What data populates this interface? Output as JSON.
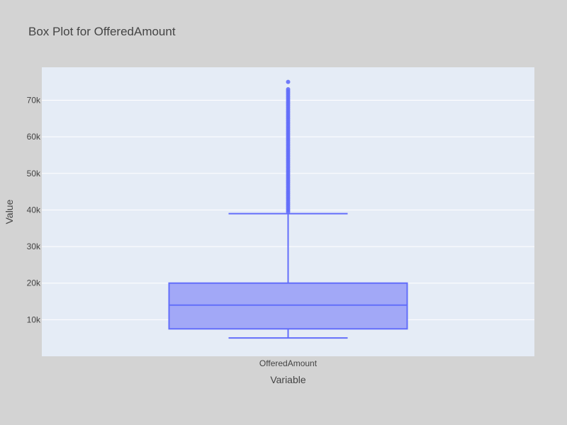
{
  "chart_data": {
    "type": "box",
    "title": "Box Plot for OfferedAmount",
    "xlabel": "Variable",
    "ylabel": "Value",
    "categories": [
      "OfferedAmount"
    ],
    "ylim": [
      0,
      79000
    ],
    "y_ticks": [
      10000,
      20000,
      30000,
      40000,
      50000,
      60000,
      70000
    ],
    "y_tick_labels": [
      "10k",
      "20k",
      "30k",
      "40k",
      "50k",
      "60k",
      "70k"
    ],
    "grid": true,
    "series": [
      {
        "category": "OfferedAmount",
        "min": 5000,
        "q1": 7500,
        "median": 14000,
        "q3": 20000,
        "upper_fence": 39000,
        "max": 75000,
        "outliers": [
          39500,
          40000,
          40500,
          41000,
          41500,
          42000,
          42500,
          43000,
          43500,
          44000,
          44500,
          45000,
          45500,
          46000,
          46500,
          47000,
          47500,
          48000,
          48500,
          49000,
          49500,
          50000,
          50500,
          51000,
          51500,
          52000,
          52500,
          53000,
          53500,
          54000,
          54500,
          55000,
          55500,
          56000,
          56500,
          57000,
          57500,
          58000,
          58500,
          59000,
          59500,
          60000,
          60500,
          61000,
          61500,
          62000,
          62500,
          63000,
          63500,
          64000,
          64500,
          65000,
          65500,
          66000,
          66500,
          67000,
          67500,
          68000,
          68500,
          69000,
          69500,
          70000,
          70500,
          71000,
          71500,
          72000,
          72500,
          73000,
          75000
        ]
      }
    ],
    "colors": {
      "paper_bg": "#d3d3d3",
      "plot_bg": "#e5ecf6",
      "grid": "#ffffff",
      "box_line": "#636efa",
      "box_fill": "#a2a8f7",
      "text": "#444444"
    }
  }
}
